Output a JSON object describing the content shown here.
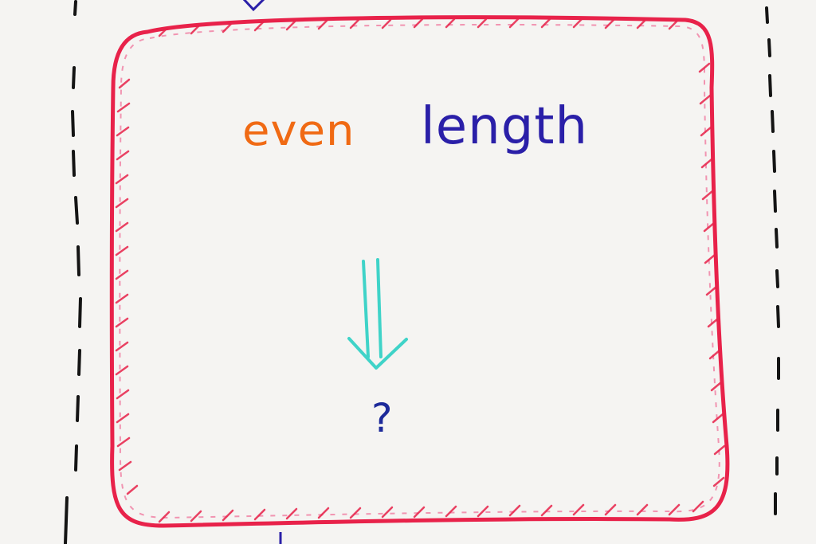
{
  "whiteboard": {
    "words": {
      "first": "even",
      "second": "length"
    },
    "question": "?"
  },
  "colors": {
    "board": "#f4f3f1",
    "frame": "#e8224a",
    "frame_light": "#f07ca0",
    "word_even": "#f06a14",
    "word_length": "#2a1fa8",
    "arrow": "#3fd3c8",
    "question_mark": "#1d2a9a",
    "dashes": "#1a1a1a"
  },
  "icons": {
    "arrow": "double-down-arrow-icon",
    "top_arrow": "down-arrow-icon"
  }
}
